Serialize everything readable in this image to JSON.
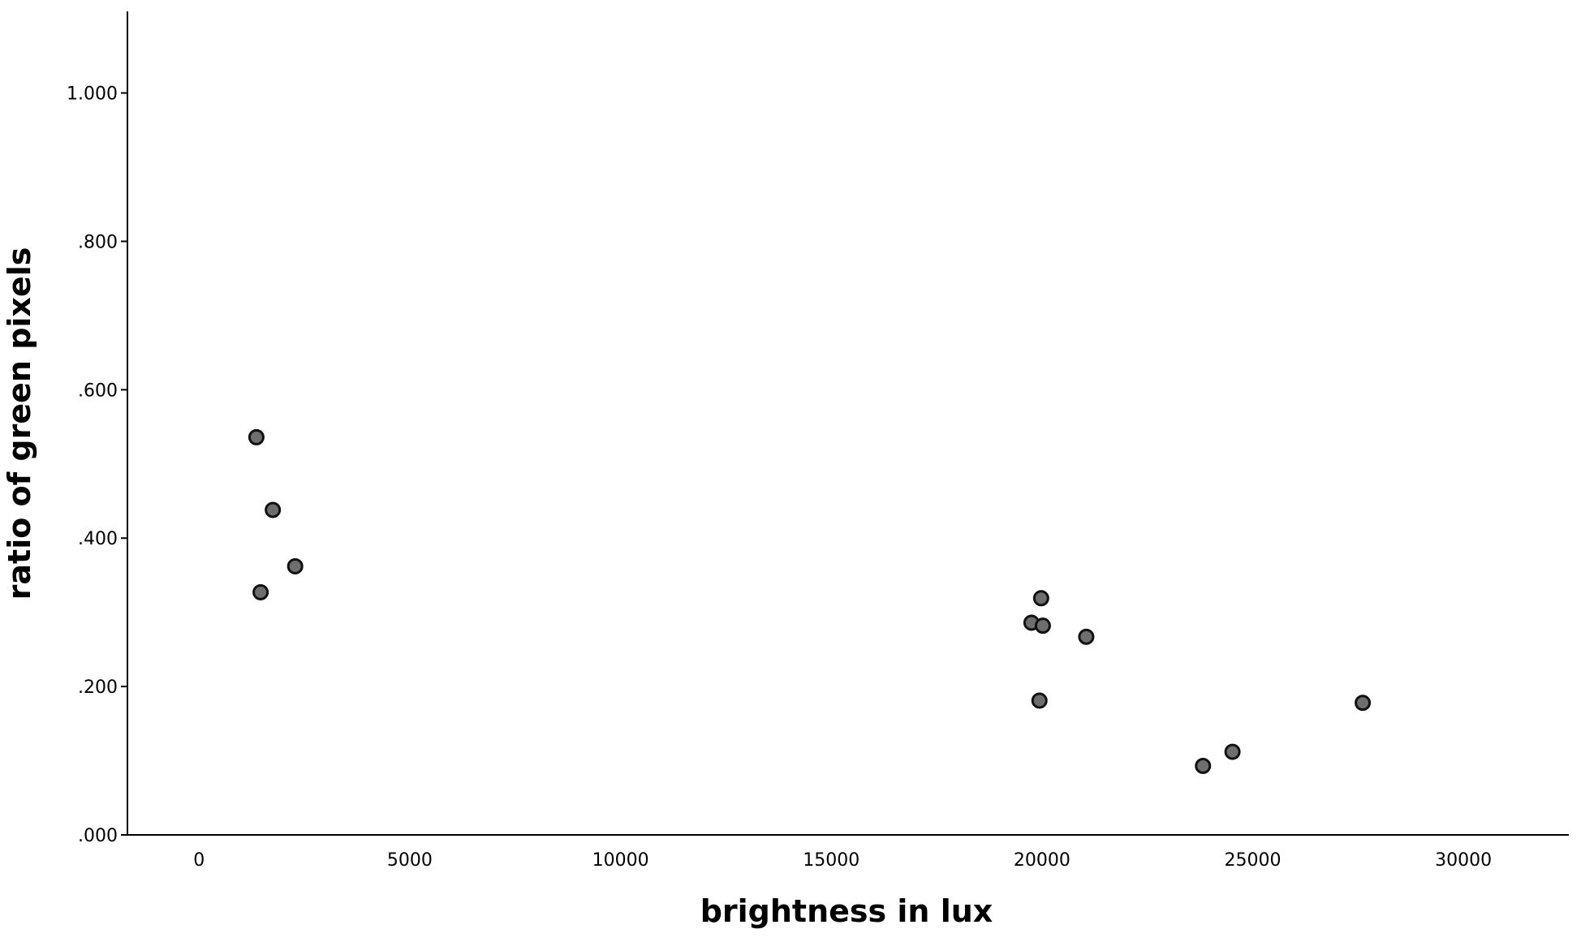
{
  "chart_data": {
    "type": "scatter",
    "title": "",
    "xlabel": "brightness in lux",
    "ylabel": "ratio of green pixels",
    "xlim": [
      -1700,
      32500
    ],
    "ylim": [
      0,
      1.11
    ],
    "xticks": [
      0,
      5000,
      10000,
      15000,
      20000,
      25000,
      30000
    ],
    "xtick_labels": [
      "0",
      "5000",
      "10000",
      "15000",
      "20000",
      "25000",
      "30000"
    ],
    "yticks": [
      0,
      0.2,
      0.4,
      0.6,
      0.8,
      1.0
    ],
    "ytick_labels": [
      ".000",
      ".200",
      ".400",
      ".600",
      ".800",
      "1.000"
    ],
    "grid": false,
    "legend": "none",
    "marker_fill": "#6e6e6e",
    "marker_edge": "#111111",
    "points": [
      {
        "x": 1360,
        "y": 0.536
      },
      {
        "x": 1750,
        "y": 0.438
      },
      {
        "x": 2280,
        "y": 0.362
      },
      {
        "x": 1460,
        "y": 0.327
      },
      {
        "x": 19980,
        "y": 0.319
      },
      {
        "x": 19750,
        "y": 0.286
      },
      {
        "x": 20020,
        "y": 0.282
      },
      {
        "x": 21050,
        "y": 0.267
      },
      {
        "x": 19940,
        "y": 0.181
      },
      {
        "x": 27610,
        "y": 0.178
      },
      {
        "x": 24520,
        "y": 0.112
      },
      {
        "x": 23820,
        "y": 0.093
      }
    ]
  }
}
